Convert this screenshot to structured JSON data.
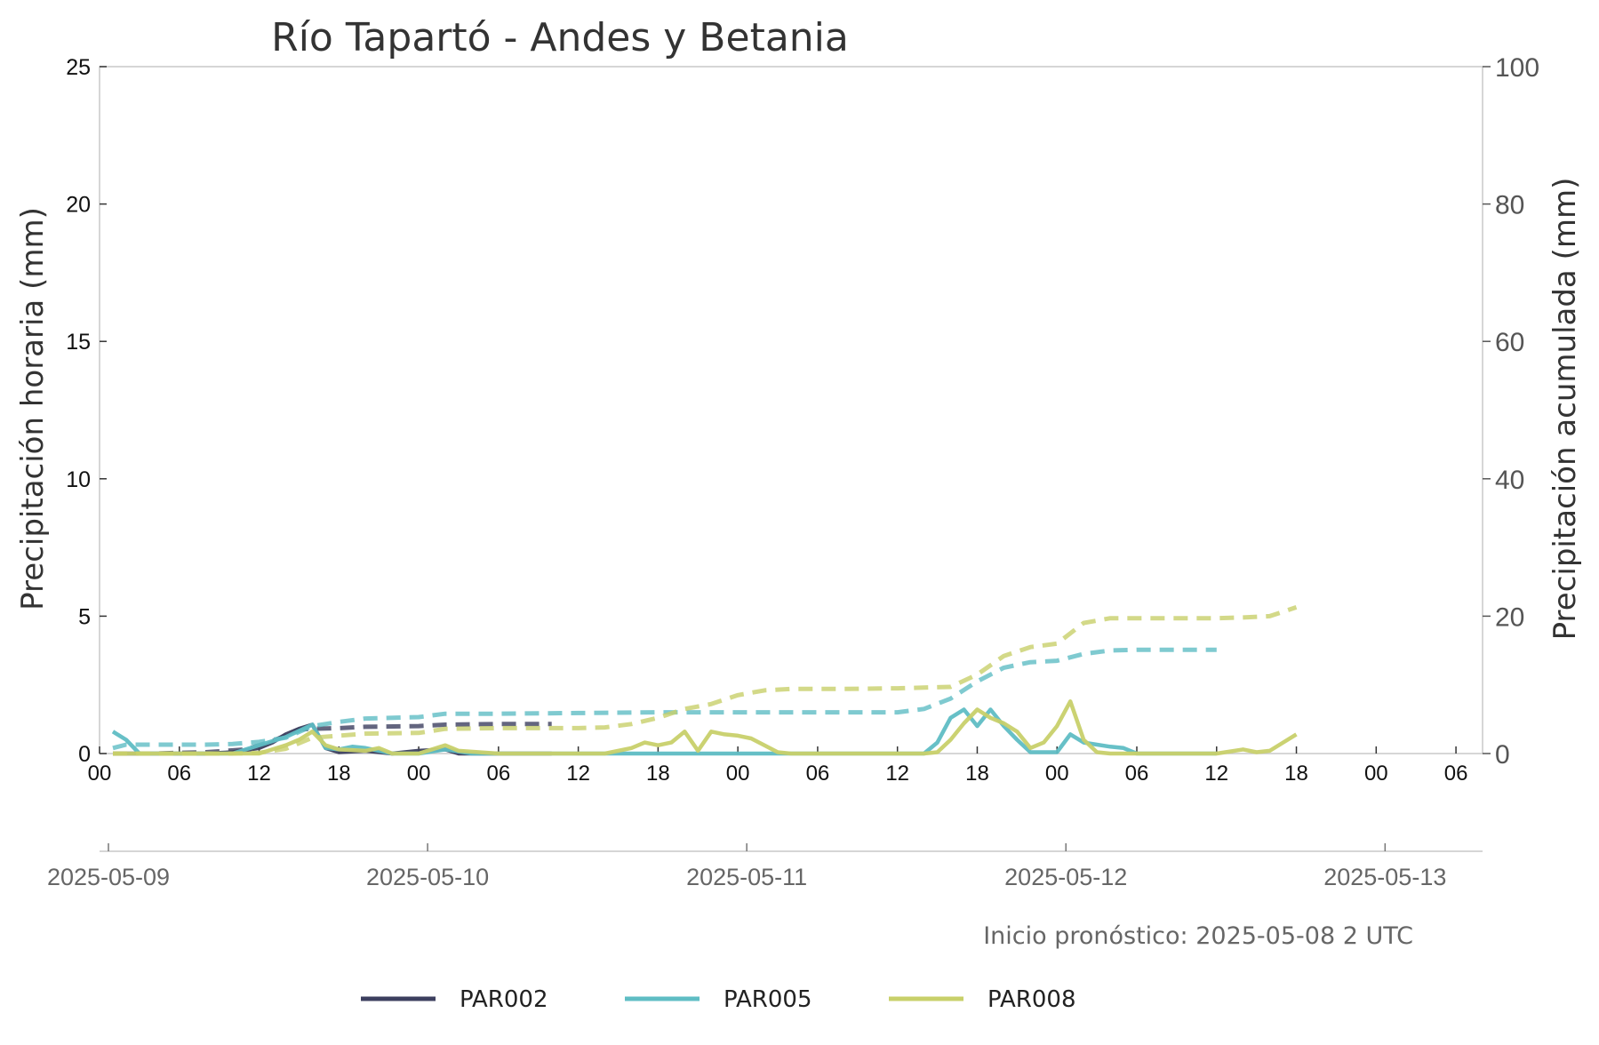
{
  "chart_data": {
    "type": "line",
    "title": "Río Tapartó - Andes y Betania",
    "ylabel_left": "Precipitación horaria (mm)",
    "ylabel_right": "Precipitación acumulada (mm)",
    "ylim_left": [
      0,
      25
    ],
    "ylim_right": [
      0,
      100
    ],
    "yticks_left": [
      "0",
      "5",
      "10",
      "15",
      "20",
      "25"
    ],
    "yticks_right": [
      "0",
      "20",
      "40",
      "60",
      "80",
      "100"
    ],
    "x_hour_ticks": [
      "00",
      "06",
      "12",
      "18",
      "00",
      "06",
      "12",
      "18",
      "00",
      "06",
      "12",
      "18",
      "00",
      "06",
      "12",
      "18",
      "00",
      "06"
    ],
    "x_date_ticks": [
      "2025-05-09",
      "2025-05-10",
      "2025-05-11",
      "2025-05-12",
      "2025-05-13"
    ],
    "x_unit": "hours since 2025-05-09 00 UTC",
    "grid": false,
    "legend_position": "bottom",
    "note": "Inicio pronóstico: 2025-05-08 2 UTC",
    "series": [
      {
        "name": "PAR002",
        "color": "#3c3f5f",
        "hourly": [
          [
            1,
            0
          ],
          [
            2,
            0
          ],
          [
            4,
            0
          ],
          [
            6,
            0
          ],
          [
            8,
            0
          ],
          [
            10,
            0.05
          ],
          [
            12,
            0.2
          ],
          [
            13,
            0.4
          ],
          [
            14,
            0.7
          ],
          [
            15,
            0.9
          ],
          [
            16,
            1.05
          ],
          [
            17,
            0.2
          ],
          [
            18,
            0.05
          ],
          [
            20,
            0.1
          ],
          [
            22,
            0
          ],
          [
            24,
            0.1
          ],
          [
            26,
            0.15
          ],
          [
            27,
            0
          ],
          [
            30,
            0
          ],
          [
            34,
            0
          ]
        ],
        "cumulative": [
          [
            1,
            0
          ],
          [
            4,
            0
          ],
          [
            8,
            0.2
          ],
          [
            11,
            0.6
          ],
          [
            13,
            1.8
          ],
          [
            15,
            3.5
          ],
          [
            16,
            3.6
          ],
          [
            18,
            3.7
          ],
          [
            20,
            3.9
          ],
          [
            24,
            4.0
          ],
          [
            26,
            4.2
          ],
          [
            30,
            4.3
          ],
          [
            34,
            4.3
          ]
        ]
      },
      {
        "name": "PAR005",
        "color": "#5fbdc4",
        "hourly": [
          [
            1,
            0.8
          ],
          [
            2,
            0.5
          ],
          [
            3,
            0
          ],
          [
            6,
            0
          ],
          [
            8,
            0
          ],
          [
            10,
            0
          ],
          [
            12,
            0.3
          ],
          [
            14,
            0.6
          ],
          [
            16,
            1.05
          ],
          [
            17,
            0.2
          ],
          [
            18,
            0.15
          ],
          [
            19,
            0.25
          ],
          [
            20,
            0.2
          ],
          [
            22,
            0
          ],
          [
            24,
            0
          ],
          [
            26,
            0.15
          ],
          [
            28,
            0
          ],
          [
            60,
            0
          ],
          [
            62,
            0
          ],
          [
            63,
            0.4
          ],
          [
            64,
            1.3
          ],
          [
            65,
            1.6
          ],
          [
            66,
            1.0
          ],
          [
            67,
            1.6
          ],
          [
            68,
            1.0
          ],
          [
            69,
            0.5
          ],
          [
            70,
            0.05
          ],
          [
            72,
            0.05
          ],
          [
            73,
            0.7
          ],
          [
            74,
            0.4
          ],
          [
            76,
            0.25
          ],
          [
            77,
            0.2
          ],
          [
            78,
            0
          ],
          [
            84,
            0
          ]
        ],
        "cumulative": [
          [
            1,
            0.8
          ],
          [
            2,
            1.3
          ],
          [
            4,
            1.3
          ],
          [
            8,
            1.3
          ],
          [
            10,
            1.4
          ],
          [
            12,
            1.7
          ],
          [
            14,
            2.3
          ],
          [
            16,
            4.0
          ],
          [
            18,
            4.6
          ],
          [
            20,
            5.1
          ],
          [
            24,
            5.3
          ],
          [
            26,
            5.8
          ],
          [
            30,
            5.8
          ],
          [
            36,
            5.9
          ],
          [
            42,
            6.0
          ],
          [
            48,
            6.0
          ],
          [
            54,
            6.0
          ],
          [
            60,
            6.0
          ],
          [
            62,
            6.5
          ],
          [
            64,
            8.0
          ],
          [
            66,
            10.5
          ],
          [
            68,
            12.5
          ],
          [
            70,
            13.3
          ],
          [
            72,
            13.5
          ],
          [
            74,
            14.5
          ],
          [
            76,
            15.0
          ],
          [
            78,
            15.1
          ],
          [
            84,
            15.1
          ]
        ]
      },
      {
        "name": "PAR008",
        "color": "#c8d06a",
        "hourly": [
          [
            1,
            0
          ],
          [
            3,
            0
          ],
          [
            6,
            0
          ],
          [
            8,
            0
          ],
          [
            10,
            0
          ],
          [
            12,
            0
          ],
          [
            14,
            0.3
          ],
          [
            15,
            0.5
          ],
          [
            16,
            0.8
          ],
          [
            17,
            0.3
          ],
          [
            18,
            0.15
          ],
          [
            20,
            0.1
          ],
          [
            21,
            0.2
          ],
          [
            22,
            0
          ],
          [
            24,
            0
          ],
          [
            26,
            0.3
          ],
          [
            27,
            0.1
          ],
          [
            30,
            0
          ],
          [
            38,
            0
          ],
          [
            40,
            0.2
          ],
          [
            41,
            0.4
          ],
          [
            42,
            0.3
          ],
          [
            43,
            0.4
          ],
          [
            44,
            0.8
          ],
          [
            45,
            0.1
          ],
          [
            46,
            0.8
          ],
          [
            47,
            0.7
          ],
          [
            48,
            0.65
          ],
          [
            49,
            0.55
          ],
          [
            50,
            0.3
          ],
          [
            51,
            0.05
          ],
          [
            52,
            0
          ],
          [
            60,
            0
          ],
          [
            62,
            0
          ],
          [
            63,
            0.05
          ],
          [
            64,
            0.5
          ],
          [
            65,
            1.1
          ],
          [
            66,
            1.6
          ],
          [
            67,
            1.3
          ],
          [
            68,
            1.1
          ],
          [
            69,
            0.8
          ],
          [
            70,
            0.2
          ],
          [
            71,
            0.4
          ],
          [
            72,
            1.0
          ],
          [
            73,
            1.9
          ],
          [
            74,
            0.5
          ],
          [
            75,
            0.05
          ],
          [
            76,
            0
          ],
          [
            84,
            0
          ],
          [
            86,
            0.15
          ],
          [
            87,
            0.05
          ],
          [
            88,
            0.1
          ],
          [
            89,
            0.4
          ],
          [
            90,
            0.7
          ]
        ],
        "cumulative": [
          [
            1,
            0
          ],
          [
            6,
            0
          ],
          [
            10,
            0
          ],
          [
            12,
            0.1
          ],
          [
            14,
            0.7
          ],
          [
            16,
            2.3
          ],
          [
            18,
            2.6
          ],
          [
            20,
            2.9
          ],
          [
            24,
            3.0
          ],
          [
            26,
            3.6
          ],
          [
            30,
            3.7
          ],
          [
            36,
            3.7
          ],
          [
            38,
            3.8
          ],
          [
            40,
            4.3
          ],
          [
            42,
            5.2
          ],
          [
            44,
            6.5
          ],
          [
            46,
            7.2
          ],
          [
            48,
            8.5
          ],
          [
            50,
            9.2
          ],
          [
            52,
            9.4
          ],
          [
            56,
            9.4
          ],
          [
            60,
            9.5
          ],
          [
            62,
            9.6
          ],
          [
            64,
            9.7
          ],
          [
            66,
            11.5
          ],
          [
            68,
            14.2
          ],
          [
            70,
            15.5
          ],
          [
            72,
            16.0
          ],
          [
            74,
            19.0
          ],
          [
            76,
            19.7
          ],
          [
            80,
            19.7
          ],
          [
            84,
            19.7
          ],
          [
            86,
            19.8
          ],
          [
            88,
            20.0
          ],
          [
            90,
            21.3
          ]
        ]
      }
    ]
  }
}
